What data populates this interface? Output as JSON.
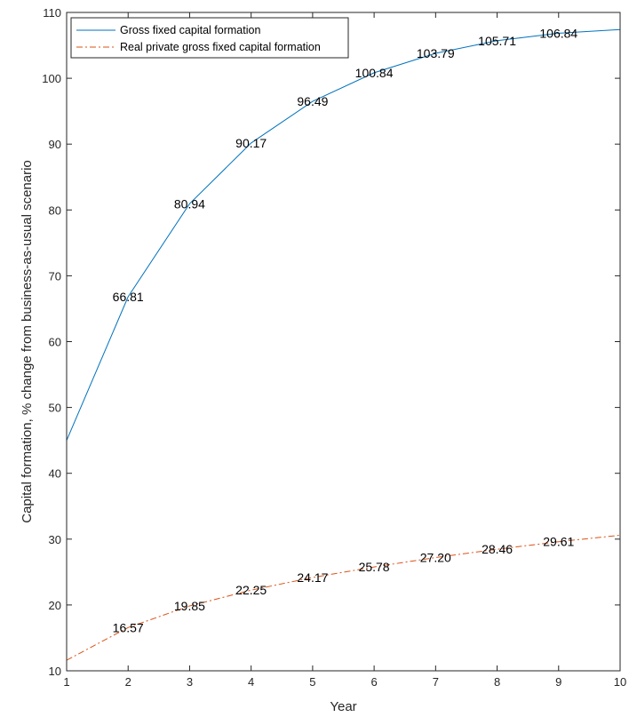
{
  "chart_data": {
    "type": "line",
    "xlabel": "Year",
    "ylabel": "Capital formation,  % change from business-as-usual scenario",
    "xlim": [
      1,
      10
    ],
    "ylim": [
      10,
      110
    ],
    "xticks": [
      1,
      2,
      3,
      4,
      5,
      6,
      7,
      8,
      9,
      10
    ],
    "yticks": [
      10,
      20,
      30,
      40,
      50,
      60,
      70,
      80,
      90,
      100,
      110
    ],
    "grid": false,
    "legend_position": "top-left",
    "x": [
      1,
      2,
      3,
      4,
      5,
      6,
      7,
      8,
      9,
      10
    ],
    "series": [
      {
        "name": "Gross fixed capital formation",
        "color": "#0072BD",
        "style": "solid",
        "values": [
          45.0,
          66.81,
          80.94,
          90.17,
          96.49,
          100.84,
          103.79,
          105.71,
          106.84,
          107.4
        ],
        "labels": [
          "",
          "66.81",
          "80.94",
          "90.17",
          "96.49",
          "100.84",
          "103.79",
          "105.71",
          "106.84",
          ""
        ]
      },
      {
        "name": "Real private gross fixed capital formation",
        "color": "#D95319",
        "style": "dashdot",
        "values": [
          11.6,
          16.57,
          19.85,
          22.25,
          24.17,
          25.78,
          27.2,
          28.46,
          29.61,
          30.6
        ],
        "labels": [
          "",
          "16.57",
          "19.85",
          "22.25",
          "24.17",
          "25.78",
          "27.20",
          "28.46",
          "29.61",
          ""
        ]
      }
    ]
  }
}
